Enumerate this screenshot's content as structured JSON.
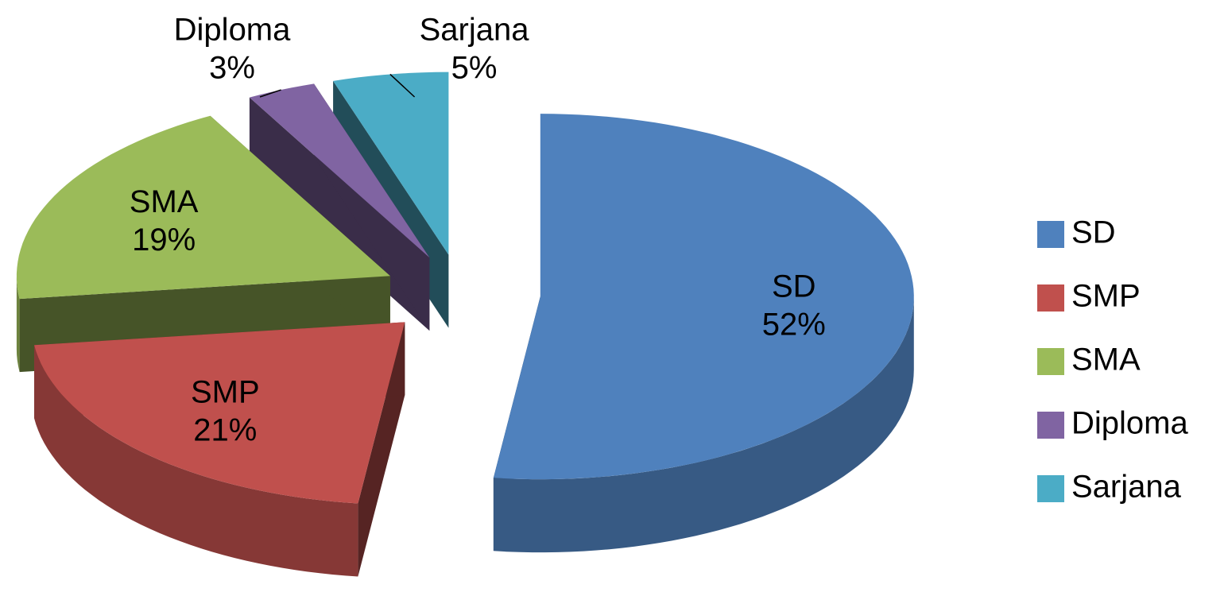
{
  "chart_data": {
    "type": "pie",
    "categories": [
      "SD",
      "SMP",
      "SMA",
      "Diploma",
      "Sarjana"
    ],
    "values": [
      52,
      21,
      19,
      3,
      5
    ],
    "value_labels": [
      "52%",
      "21%",
      "19%",
      "3%",
      "5%"
    ],
    "colors": [
      "#4f81bd",
      "#c0504d",
      "#9bbb59",
      "#8064a2",
      "#4bacc6"
    ],
    "legend": "right",
    "exploded": true,
    "three_d": true
  }
}
